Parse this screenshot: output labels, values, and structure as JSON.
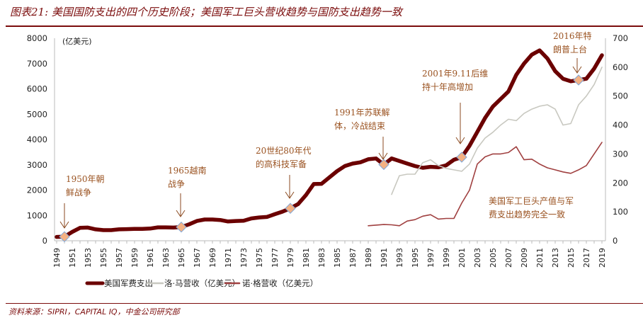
{
  "title": "图表21: 美国国防支出的四个历史阶段；美国军工巨头营收趋势与国防支出趋势一致",
  "source": "资料来源：SIPRI，CAPITAL IQ，中金公司研究部",
  "chart_data": {
    "type": "line",
    "title": "",
    "ylabel_left": "(亿美元)",
    "ylim_left": [
      0,
      8000
    ],
    "yticks_left": [
      0,
      1000,
      2000,
      3000,
      4000,
      5000,
      6000,
      7000,
      8000
    ],
    "ylim_right": [
      0,
      700
    ],
    "yticks_right": [
      0,
      100,
      200,
      300,
      400,
      500,
      600,
      700
    ],
    "xlim": [
      1949,
      2019
    ],
    "xticks": [
      1949,
      1951,
      1953,
      1955,
      1957,
      1959,
      1961,
      1963,
      1965,
      1967,
      1969,
      1971,
      1973,
      1975,
      1977,
      1979,
      1981,
      1983,
      1985,
      1987,
      1989,
      1991,
      1993,
      1995,
      1997,
      1999,
      2001,
      2003,
      2005,
      2007,
      2009,
      2011,
      2013,
      2015,
      2017,
      2019
    ],
    "legend_position": "bottom",
    "grid": false,
    "series": [
      {
        "name": "美国军费支出",
        "axis": "left",
        "color": "#6b0000",
        "start": 1949,
        "values": [
          150,
          160,
          350,
          510,
          520,
          450,
          420,
          420,
          450,
          460,
          470,
          470,
          480,
          530,
          530,
          520,
          540,
          650,
          780,
          840,
          840,
          820,
          760,
          780,
          790,
          880,
          920,
          940,
          1050,
          1150,
          1280,
          1450,
          1800,
          2240,
          2250,
          2500,
          2750,
          2950,
          3050,
          3100,
          3220,
          3250,
          3010,
          3250,
          3150,
          3050,
          2950,
          2880,
          2920,
          2900,
          2980,
          3200,
          3300,
          3750,
          4300,
          4850,
          5300,
          5600,
          5900,
          6550,
          7000,
          7350,
          7520,
          7200,
          6700,
          6400,
          6300,
          6350,
          6400,
          6800,
          7330
        ]
      },
      {
        "name": "洛·马营收（亿美元）",
        "axis": "right",
        "color": "#c8c8c0",
        "start": 1992,
        "values": [
          160,
          225,
          230,
          230,
          270,
          280,
          260,
          250,
          245,
          240,
          265,
          320,
          355,
          375,
          400,
          420,
          415,
          440,
          455,
          465,
          470,
          455,
          400,
          405,
          470,
          500,
          540,
          600
        ]
      },
      {
        "name": "诺·格营收（亿美元）",
        "axis": "right",
        "color": "#a04040",
        "start": 1989,
        "values": [
          52,
          54,
          56,
          55,
          52,
          68,
          73,
          85,
          90,
          75,
          77,
          77,
          130,
          175,
          265,
          290,
          300,
          300,
          305,
          325,
          280,
          282,
          265,
          252,
          245,
          238,
          233,
          245,
          260,
          300,
          340
        ]
      }
    ],
    "markers": [
      1950,
      1965,
      1979,
      1991,
      2001,
      2016
    ],
    "marker_color": "#f4b183",
    "annotations": [
      {
        "lines": [
          "1950年朝",
          "鲜战争"
        ]
      },
      {
        "lines": [
          "1965越南",
          "战争"
        ]
      },
      {
        "lines": [
          "20世纪80年代",
          "的高科技军备"
        ]
      },
      {
        "lines": [
          "1991年苏联解",
          "体，冷战结束"
        ]
      },
      {
        "lines": [
          "2001年9.11后维",
          "持十年高增加"
        ]
      },
      {
        "lines": [
          "2016年特",
          "朗普上台"
        ]
      },
      {
        "lines": [
          "美国军工巨头产值与军",
          "费支出趋势完全一致"
        ]
      }
    ],
    "annotation_color": "#9a5220"
  }
}
